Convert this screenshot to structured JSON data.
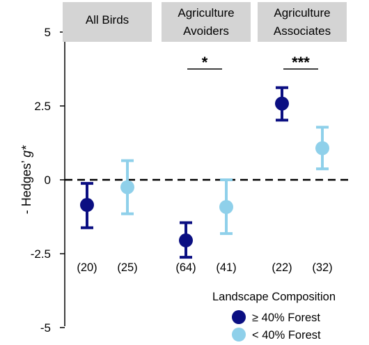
{
  "chart_data": {
    "type": "scatter",
    "style": "point-with-error-bars",
    "ylabel_prefix": "- Hedges’ ",
    "ylabel_italic": "g*",
    "ylim": [
      -5,
      5
    ],
    "yticks": [
      5,
      2.5,
      0,
      -2.5,
      -5
    ],
    "ytick_labels": [
      "5",
      "2.5",
      "0",
      "-2.5",
      "-5"
    ],
    "reference_line": 0,
    "panels": [
      {
        "lines": [
          "All Birds"
        ]
      },
      {
        "lines": [
          "Agriculture",
          "Avoiders"
        ]
      },
      {
        "lines": [
          "Agriculture",
          "Associates"
        ]
      }
    ],
    "series": [
      {
        "name": "≥ 40% Forest",
        "color": "#0b0f82"
      },
      {
        "name": "< 40% Forest",
        "color": "#8fd0ea"
      }
    ],
    "points": [
      {
        "panel": 0,
        "series": 0,
        "y": -0.85,
        "low": -1.62,
        "high": -0.12,
        "n": "(20)"
      },
      {
        "panel": 0,
        "series": 1,
        "y": -0.25,
        "low": -1.15,
        "high": 0.65,
        "n": "(25)"
      },
      {
        "panel": 1,
        "series": 0,
        "y": -2.05,
        "low": -2.62,
        "high": -1.45,
        "n": "(64)"
      },
      {
        "panel": 1,
        "series": 1,
        "y": -0.92,
        "low": -1.82,
        "high": 0.0,
        "n": "(41)"
      },
      {
        "panel": 2,
        "series": 0,
        "y": 2.58,
        "low": 2.02,
        "high": 3.12,
        "n": "(22)"
      },
      {
        "panel": 2,
        "series": 1,
        "y": 1.07,
        "low": 0.37,
        "high": 1.78,
        "n": "(32)"
      }
    ],
    "significance": [
      {
        "panel": 1,
        "label": "*"
      },
      {
        "panel": 2,
        "label": "***"
      }
    ],
    "legend": {
      "title": "Landscape Composition",
      "position": "bottom-right"
    }
  }
}
